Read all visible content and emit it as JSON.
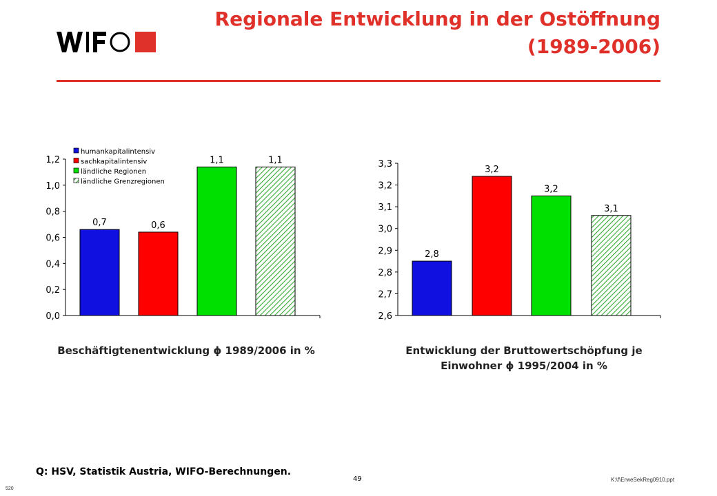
{
  "header": {
    "logo_text": "WIFO",
    "title_line1": "Regionale Entwicklung in der Ostöffnung",
    "title_line2": "(1989-2006)",
    "accent_color": "#e0302a"
  },
  "legend": {
    "items": [
      {
        "label": "humankapitalintensiv",
        "color": "#1010e0",
        "pattern": "solid"
      },
      {
        "label": "sachkapitalintensiv",
        "color": "#ff0000",
        "pattern": "solid"
      },
      {
        "label": "ländliche Regionen",
        "color": "#00e000",
        "pattern": "solid"
      },
      {
        "label": "ländliche Grenzregionen",
        "color": "#33aa33",
        "pattern": "hatched"
      }
    ]
  },
  "chart_data": [
    {
      "type": "bar",
      "categories": [
        "humankapitalintensiv",
        "sachkapitalintensiv",
        "ländliche Regionen",
        "ländliche Grenzregionen"
      ],
      "values": [
        0.66,
        0.64,
        1.14,
        1.14
      ],
      "data_labels": [
        "0,7",
        "0,6",
        "1,1",
        "1,1"
      ],
      "ylim": [
        0.0,
        1.2
      ],
      "yticks": [
        "0,0",
        "0,2",
        "0,4",
        "0,6",
        "0,8",
        "1,0",
        "1,2"
      ],
      "caption": "Beschäftigtenentwicklung ɸ 1989/2006 in %",
      "legend_position": "top-left"
    },
    {
      "type": "bar",
      "categories": [
        "humankapitalintensiv",
        "sachkapitalintensiv",
        "ländliche Regionen",
        "ländliche Grenzregionen"
      ],
      "values": [
        2.85,
        3.24,
        3.15,
        3.06
      ],
      "data_labels": [
        "2,8",
        "3,2",
        "3,2",
        "3,1"
      ],
      "ylim": [
        2.6,
        3.3
      ],
      "yticks": [
        "2,6",
        "2,7",
        "2,8",
        "2,9",
        "3,0",
        "3,1",
        "3,2",
        "3,3"
      ],
      "caption_line1": "Entwicklung der Bruttowertschöpfung je",
      "caption_line2": "Einwohner ɸ 1995/2004 in %"
    }
  ],
  "footer": {
    "source": "Q: HSV, Statistik Austria, WIFO-Berechnungen.",
    "page": "49",
    "file": "K:\\f\\ErweSekReg0910.ppt",
    "slide_id": "520"
  }
}
